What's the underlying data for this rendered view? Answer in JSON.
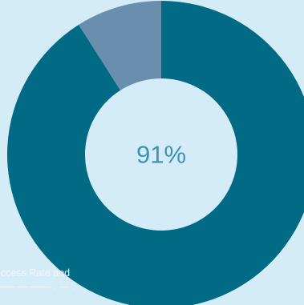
{
  "chart_data": {
    "type": "pie",
    "variant": "donut",
    "slices": [
      {
        "value": 91,
        "color": "#016a84"
      },
      {
        "value": 9,
        "color": "#6a8fae"
      }
    ],
    "center_label": "91%",
    "center_label_color": "#3d93b4",
    "background_color": "#d4ecf8"
  },
  "caption": {
    "line1": "uccess Rate and",
    "line2": "—— — —— . — ."
  }
}
